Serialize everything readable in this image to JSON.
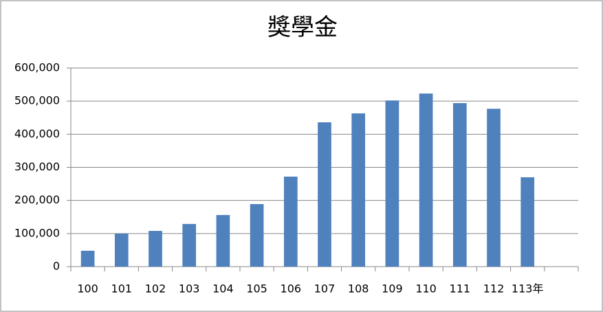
{
  "chart_data": {
    "type": "bar",
    "title": "獎學金",
    "categories": [
      "100",
      "101",
      "102",
      "103",
      "104",
      "105",
      "106",
      "107",
      "108",
      "109",
      "110",
      "111",
      "112",
      "113年",
      null
    ],
    "values": [
      48000,
      100000,
      108000,
      129000,
      156000,
      189000,
      272000,
      436000,
      463000,
      502000,
      523000,
      494000,
      477000,
      270000,
      null
    ],
    "color": "#4f81bd",
    "ylim": [
      0,
      600000
    ],
    "yticks": [
      0,
      {
        "value": 100000,
        "label": "100,000"
      },
      {
        "value": 200000,
        "label": "200,000"
      },
      {
        "value": 300000,
        "label": "300,000"
      },
      {
        "value": 400000,
        "label": "400,000"
      },
      {
        "value": 500000,
        "label": "500,000"
      },
      {
        "value": 600000,
        "label": "600,000"
      }
    ],
    "grid": true
  }
}
